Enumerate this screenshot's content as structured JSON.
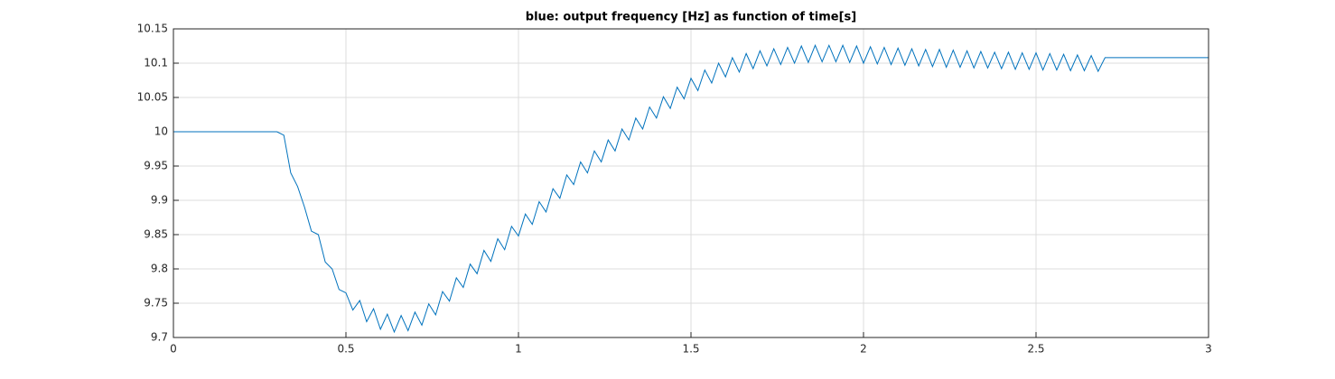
{
  "chart_data": {
    "type": "line",
    "title": "blue: output frequency [Hz] as function of time[s]",
    "x": [
      0,
      0.3,
      0.32,
      0.34,
      0.36,
      0.38,
      0.4,
      0.42,
      0.44,
      0.46,
      0.48,
      0.5,
      0.52,
      0.54,
      0.56,
      0.58,
      0.6,
      0.62,
      0.64,
      0.66,
      0.68,
      0.7,
      0.72,
      0.74,
      0.76,
      0.78,
      0.8,
      0.82,
      0.84,
      0.86,
      0.88,
      0.9,
      0.92,
      0.94,
      0.96,
      0.98,
      1.0,
      1.02,
      1.04,
      1.06,
      1.08,
      1.1,
      1.12,
      1.14,
      1.16,
      1.18,
      1.2,
      1.22,
      1.24,
      1.26,
      1.28,
      1.3,
      1.32,
      1.34,
      1.36,
      1.38,
      1.4,
      1.42,
      1.44,
      1.46,
      1.48,
      1.5,
      1.52,
      1.54,
      1.56,
      1.58,
      1.6,
      1.62,
      1.64,
      1.66,
      1.68,
      1.7,
      1.72,
      1.74,
      1.76,
      1.78,
      1.8,
      1.82,
      1.84,
      1.86,
      1.88,
      1.9,
      1.92,
      1.94,
      1.96,
      1.98,
      2.0,
      2.02,
      2.04,
      2.06,
      2.08,
      2.1,
      2.12,
      2.14,
      2.16,
      2.18,
      2.2,
      2.22,
      2.24,
      2.26,
      2.28,
      2.3,
      2.32,
      2.34,
      2.36,
      2.38,
      2.4,
      2.42,
      2.44,
      2.46,
      2.48,
      2.5,
      2.52,
      2.54,
      2.56,
      2.58,
      2.6,
      2.62,
      2.64,
      2.66,
      2.68,
      2.7,
      3.0
    ],
    "series": [
      {
        "color": "#0072bd",
        "values": [
          10,
          10,
          9.995,
          9.94,
          9.92,
          9.89,
          9.855,
          9.85,
          9.81,
          9.8,
          9.77,
          9.765,
          9.74,
          9.754,
          9.723,
          9.742,
          9.712,
          9.734,
          9.708,
          9.732,
          9.71,
          9.737,
          9.718,
          9.749,
          9.733,
          9.767,
          9.753,
          9.787,
          9.773,
          9.807,
          9.793,
          9.827,
          9.811,
          9.844,
          9.828,
          9.862,
          9.848,
          9.88,
          9.865,
          9.898,
          9.883,
          9.917,
          9.903,
          9.937,
          9.923,
          9.956,
          9.94,
          9.972,
          9.956,
          9.988,
          9.972,
          10.004,
          9.988,
          10.02,
          10.004,
          10.036,
          10.02,
          10.051,
          10.034,
          10.065,
          10.048,
          10.078,
          10.06,
          10.09,
          10.071,
          10.1,
          10.08,
          10.108,
          10.087,
          10.114,
          10.092,
          10.118,
          10.096,
          10.121,
          10.098,
          10.123,
          10.1,
          10.125,
          10.101,
          10.126,
          10.102,
          10.126,
          10.102,
          10.126,
          10.101,
          10.125,
          10.1,
          10.124,
          10.099,
          10.123,
          10.098,
          10.122,
          10.097,
          10.121,
          10.096,
          10.12,
          10.095,
          10.12,
          10.094,
          10.119,
          10.094,
          10.118,
          10.093,
          10.117,
          10.093,
          10.116,
          10.092,
          10.116,
          10.091,
          10.115,
          10.091,
          10.115,
          10.09,
          10.114,
          10.09,
          10.113,
          10.089,
          10.112,
          10.089,
          10.111,
          10.088,
          10.108,
          10.108
        ]
      }
    ],
    "xlim": [
      0,
      3
    ],
    "xticks": [
      0,
      0.5,
      1,
      1.5,
      2,
      2.5,
      3
    ],
    "ylim": [
      9.7,
      10.15
    ],
    "yticks": [
      9.7,
      9.75,
      9.8,
      9.85,
      9.9,
      9.95,
      10,
      10.05,
      10.1,
      10.15
    ],
    "grid": true
  }
}
